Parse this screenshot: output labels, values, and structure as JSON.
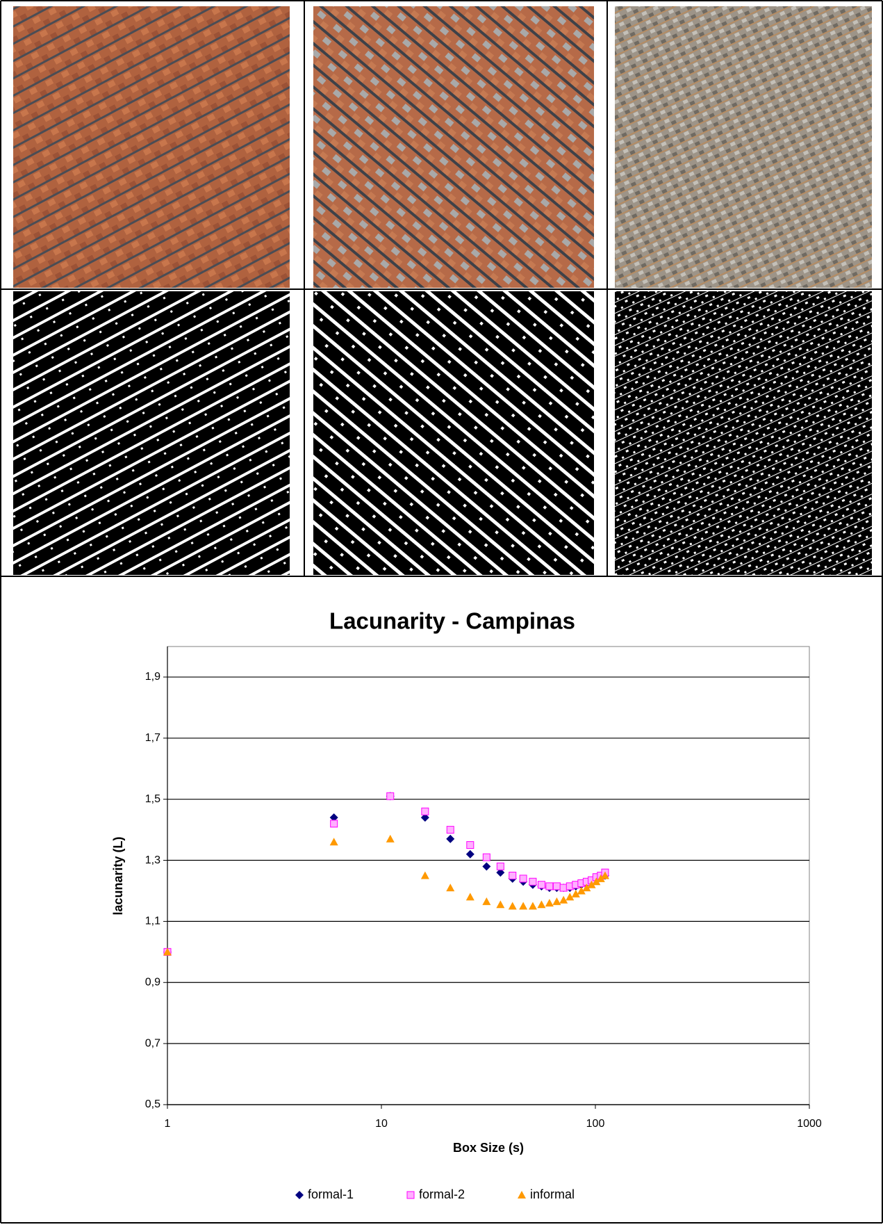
{
  "chart_data": {
    "type": "scatter",
    "title": "Lacunarity - Campinas",
    "x_label": "Box Size (s)",
    "y_label": "lacunarity (L)",
    "x": [
      1,
      6,
      11,
      16,
      21,
      26,
      31,
      36,
      41,
      46,
      51,
      56,
      61,
      66,
      71,
      76,
      81,
      86,
      91,
      96,
      101,
      106,
      111
    ],
    "series": [
      {
        "name": "formal-1",
        "color": "#000080",
        "marker": "diamond",
        "values": [
          1.0,
          1.44,
          1.51,
          1.44,
          1.37,
          1.32,
          1.28,
          1.26,
          1.24,
          1.23,
          1.22,
          1.215,
          1.21,
          1.21,
          1.21,
          1.21,
          1.215,
          1.22,
          1.225,
          1.23,
          1.24,
          1.245,
          1.25
        ]
      },
      {
        "name": "formal-2",
        "color": "#ff00ff",
        "marker": "square",
        "values": [
          1.0,
          1.42,
          1.51,
          1.46,
          1.4,
          1.35,
          1.31,
          1.28,
          1.25,
          1.24,
          1.23,
          1.22,
          1.215,
          1.215,
          1.21,
          1.215,
          1.22,
          1.225,
          1.23,
          1.235,
          1.245,
          1.25,
          1.26
        ]
      },
      {
        "name": "informal",
        "color": "#ff9900",
        "marker": "triangle",
        "values": [
          1.0,
          1.36,
          1.37,
          1.25,
          1.21,
          1.18,
          1.165,
          1.155,
          1.15,
          1.15,
          1.15,
          1.155,
          1.16,
          1.165,
          1.17,
          1.18,
          1.19,
          1.2,
          1.21,
          1.22,
          1.23,
          1.24,
          1.25
        ]
      }
    ],
    "xscale": "log",
    "xlim": [
      1,
      1000
    ],
    "xticks": [
      1,
      10,
      100,
      1000
    ],
    "ylim": [
      0.5,
      2.0
    ],
    "yticks": [
      {
        "value": 0.5,
        "label": "0,5"
      },
      {
        "value": 0.7,
        "label": "0,7"
      },
      {
        "value": 0.9,
        "label": "0,9"
      },
      {
        "value": 1.1,
        "label": "1,1"
      },
      {
        "value": 1.3,
        "label": "1,3"
      },
      {
        "value": 1.5,
        "label": "1,5"
      },
      {
        "value": 1.7,
        "label": "1,7"
      },
      {
        "value": 1.9,
        "label": "1,9"
      }
    ],
    "grid": true,
    "legend": "bottom"
  }
}
